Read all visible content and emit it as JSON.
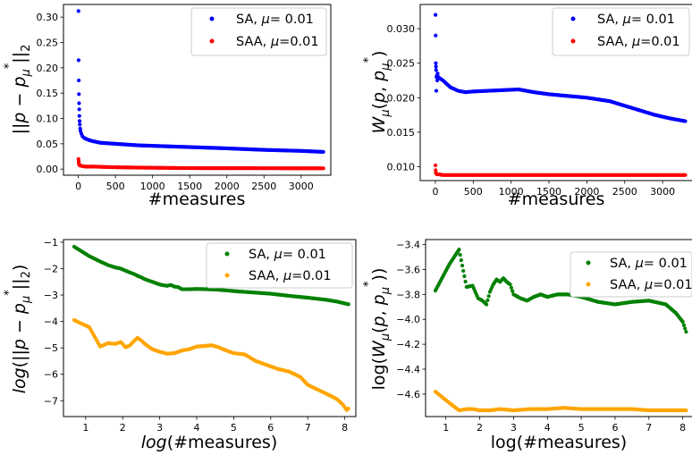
{
  "chart_data": [
    {
      "type": "scatter",
      "ylabel": "||p − p*μ||₂",
      "xlabel": "#measures",
      "xlim": [
        -200,
        3400
      ],
      "ylim": [
        -0.012,
        0.325
      ],
      "xticks": [
        0,
        500,
        1000,
        1500,
        2000,
        2500,
        3000
      ],
      "xtick_labels": [
        "0",
        "500",
        "1000",
        "1500",
        "2000",
        "2500",
        "3000"
      ],
      "yticks": [
        0.0,
        0.05,
        0.1,
        0.15,
        0.2,
        0.25,
        0.3
      ],
      "ytick_labels": [
        "0.00",
        "0.05",
        "0.10",
        "0.15",
        "0.20",
        "0.25",
        "0.30"
      ],
      "legend_position": "top-right",
      "series": [
        {
          "name": "SA, μ=  0.01",
          "color": "#0000ff",
          "points": [
            [
              2,
              0.312
            ],
            [
              4,
              0.215
            ],
            [
              6,
              0.175
            ],
            [
              8,
              0.148
            ],
            [
              10,
              0.13
            ],
            [
              12,
              0.118
            ],
            [
              14,
              0.105
            ],
            [
              17,
              0.095
            ],
            [
              20,
              0.088
            ],
            [
              25,
              0.08
            ],
            [
              30,
              0.075
            ],
            [
              40,
              0.07
            ],
            [
              55,
              0.065
            ],
            [
              75,
              0.062
            ],
            [
              100,
              0.06
            ],
            [
              150,
              0.057
            ],
            [
              200,
              0.055
            ],
            [
              300,
              0.052
            ],
            [
              500,
              0.05
            ],
            [
              800,
              0.047
            ],
            [
              1200,
              0.045
            ],
            [
              1600,
              0.043
            ],
            [
              2000,
              0.041
            ],
            [
              2500,
              0.038
            ],
            [
              3000,
              0.036
            ],
            [
              3300,
              0.034
            ]
          ]
        },
        {
          "name": "SAA, μ=0.01",
          "color": "#ff0000",
          "points": [
            [
              2,
              0.02
            ],
            [
              4,
              0.016
            ],
            [
              6,
              0.013
            ],
            [
              8,
              0.011
            ],
            [
              10,
              0.009
            ],
            [
              15,
              0.008
            ],
            [
              25,
              0.007
            ],
            [
              50,
              0.006
            ],
            [
              100,
              0.005
            ],
            [
              200,
              0.005
            ],
            [
              400,
              0.004
            ],
            [
              800,
              0.003
            ],
            [
              1500,
              0.002
            ],
            [
              2500,
              0.0018
            ],
            [
              3300,
              0.0016
            ]
          ]
        }
      ]
    },
    {
      "type": "scatter",
      "ylabel": "Wμ(p, p*μ)",
      "xlabel": "#measures",
      "xlim": [
        -200,
        3400
      ],
      "ylim": [
        0.008,
        0.0335
      ],
      "xticks": [
        0,
        500,
        1000,
        1500,
        2000,
        2500,
        3000
      ],
      "xtick_labels": [
        "0",
        "500",
        "1000",
        "1500",
        "2000",
        "2500",
        "3000"
      ],
      "yticks": [
        0.01,
        0.015,
        0.02,
        0.025,
        0.03
      ],
      "ytick_labels": [
        "0.010",
        "0.015",
        "0.020",
        "0.025",
        "0.030"
      ],
      "legend_position": "top-right",
      "series": [
        {
          "name": "SA, μ=  0.01",
          "color": "#0000ff",
          "points": [
            [
              2,
              0.032
            ],
            [
              4,
              0.029
            ],
            [
              6,
              0.025
            ],
            [
              8,
              0.0245
            ],
            [
              10,
              0.024
            ],
            [
              12,
              0.021
            ],
            [
              15,
              0.023
            ],
            [
              20,
              0.0232
            ],
            [
              25,
              0.0225
            ],
            [
              30,
              0.0235
            ],
            [
              40,
              0.023
            ],
            [
              60,
              0.0228
            ],
            [
              100,
              0.0225
            ],
            [
              150,
              0.022
            ],
            [
              200,
              0.0215
            ],
            [
              300,
              0.021
            ],
            [
              400,
              0.0208
            ],
            [
              500,
              0.0209
            ],
            [
              700,
              0.021
            ],
            [
              900,
              0.0211
            ],
            [
              1100,
              0.0212
            ],
            [
              1300,
              0.0208
            ],
            [
              1500,
              0.0205
            ],
            [
              1800,
              0.0202
            ],
            [
              2000,
              0.02
            ],
            [
              2300,
              0.0195
            ],
            [
              2600,
              0.0185
            ],
            [
              2900,
              0.0175
            ],
            [
              3100,
              0.017
            ],
            [
              3300,
              0.0166
            ]
          ]
        },
        {
          "name": "SAA, μ=0.01",
          "color": "#ff0000",
          "points": [
            [
              2,
              0.0102
            ],
            [
              4,
              0.0095
            ],
            [
              6,
              0.0092
            ],
            [
              10,
              0.009
            ],
            [
              20,
              0.0089
            ],
            [
              50,
              0.0089
            ],
            [
              100,
              0.0088
            ],
            [
              300,
              0.0088
            ],
            [
              800,
              0.0088
            ],
            [
              1500,
              0.0088
            ],
            [
              2500,
              0.0088
            ],
            [
              3300,
              0.0088
            ]
          ]
        }
      ]
    },
    {
      "type": "scatter",
      "ylabel": "log(||p − p*μ||₂)",
      "xlabel": "log(#measures)",
      "xlim": [
        0.4,
        8.3
      ],
      "ylim": [
        -7.6,
        -0.9
      ],
      "xticks": [
        1,
        2,
        3,
        4,
        5,
        6,
        7,
        8
      ],
      "xtick_labels": [
        "1",
        "2",
        "3",
        "4",
        "5",
        "6",
        "7",
        "8"
      ],
      "yticks": [
        -7,
        -6,
        -5,
        -4,
        -3,
        -2,
        -1
      ],
      "ytick_labels": [
        "−7",
        "−6",
        "−5",
        "−4",
        "−3",
        "−2",
        "−1"
      ],
      "legend_position": "top-right",
      "series": [
        {
          "name": "SA, μ=  0.01",
          "color": "#008000",
          "points": [
            [
              0.69,
              -1.17
            ],
            [
              1.1,
              -1.53
            ],
            [
              1.39,
              -1.73
            ],
            [
              1.61,
              -1.87
            ],
            [
              1.79,
              -1.95
            ],
            [
              1.95,
              -2.0
            ],
            [
              2.08,
              -2.08
            ],
            [
              2.2,
              -2.15
            ],
            [
              2.3,
              -2.2
            ],
            [
              2.4,
              -2.27
            ],
            [
              2.5,
              -2.33
            ],
            [
              2.6,
              -2.4
            ],
            [
              2.7,
              -2.45
            ],
            [
              2.8,
              -2.5
            ],
            [
              2.9,
              -2.55
            ],
            [
              3.0,
              -2.6
            ],
            [
              3.1,
              -2.63
            ],
            [
              3.2,
              -2.65
            ],
            [
              3.3,
              -2.62
            ],
            [
              3.4,
              -2.68
            ],
            [
              3.5,
              -2.7
            ],
            [
              3.6,
              -2.78
            ],
            [
              3.8,
              -2.78
            ],
            [
              4.0,
              -2.77
            ],
            [
              4.3,
              -2.78
            ],
            [
              4.6,
              -2.8
            ],
            [
              5.0,
              -2.85
            ],
            [
              5.5,
              -2.9
            ],
            [
              6.0,
              -2.95
            ],
            [
              6.5,
              -3.03
            ],
            [
              7.0,
              -3.1
            ],
            [
              7.5,
              -3.18
            ],
            [
              7.8,
              -3.25
            ],
            [
              8.1,
              -3.35
            ]
          ]
        },
        {
          "name": "SAA, μ=0.01",
          "color": "#ffa500",
          "points": [
            [
              0.69,
              -3.95
            ],
            [
              1.1,
              -4.22
            ],
            [
              1.39,
              -4.95
            ],
            [
              1.61,
              -4.82
            ],
            [
              1.79,
              -4.85
            ],
            [
              1.95,
              -4.78
            ],
            [
              2.08,
              -4.98
            ],
            [
              2.2,
              -4.9
            ],
            [
              2.3,
              -4.75
            ],
            [
              2.4,
              -4.62
            ],
            [
              2.5,
              -4.72
            ],
            [
              2.6,
              -4.85
            ],
            [
              2.7,
              -4.95
            ],
            [
              2.8,
              -5.05
            ],
            [
              3.0,
              -5.15
            ],
            [
              3.2,
              -5.22
            ],
            [
              3.4,
              -5.2
            ],
            [
              3.6,
              -5.1
            ],
            [
              3.8,
              -5.05
            ],
            [
              4.0,
              -4.95
            ],
            [
              4.2,
              -4.93
            ],
            [
              4.4,
              -4.9
            ],
            [
              4.6,
              -4.98
            ],
            [
              4.8,
              -5.1
            ],
            [
              5.0,
              -5.2
            ],
            [
              5.3,
              -5.25
            ],
            [
              5.6,
              -5.5
            ],
            [
              5.9,
              -5.65
            ],
            [
              6.2,
              -5.8
            ],
            [
              6.5,
              -5.9
            ],
            [
              6.8,
              -6.1
            ],
            [
              7.0,
              -6.4
            ],
            [
              7.3,
              -6.6
            ],
            [
              7.6,
              -6.8
            ],
            [
              7.8,
              -6.95
            ],
            [
              7.95,
              -7.15
            ],
            [
              8.05,
              -7.35
            ],
            [
              8.1,
              -7.3
            ]
          ]
        }
      ]
    },
    {
      "type": "scatter",
      "ylabel": "log(Wμ(p, p*μ))",
      "xlabel": "log(#measures)",
      "xlim": [
        0.4,
        8.3
      ],
      "ylim": [
        -4.78,
        -3.36
      ],
      "xticks": [
        1,
        2,
        3,
        4,
        5,
        6,
        7,
        8
      ],
      "xtick_labels": [
        "1",
        "2",
        "3",
        "4",
        "5",
        "6",
        "7",
        "8"
      ],
      "yticks": [
        -4.6,
        -4.4,
        -4.2,
        -4.0,
        -3.8,
        -3.6,
        -3.4
      ],
      "ytick_labels": [
        "−4.6",
        "−4.4",
        "−4.2",
        "−4.0",
        "−3.8",
        "−3.6",
        "−3.4"
      ],
      "legend_position": "top-right",
      "series": [
        {
          "name": "SA, μ=  0.01",
          "color": "#008000",
          "points": [
            [
              0.69,
              -3.77
            ],
            [
              1.1,
              -3.56
            ],
            [
              1.39,
              -3.44
            ],
            [
              1.61,
              -3.74
            ],
            [
              1.79,
              -3.73
            ],
            [
              1.95,
              -3.83
            ],
            [
              2.08,
              -3.85
            ],
            [
              2.2,
              -3.88
            ],
            [
              2.3,
              -3.78
            ],
            [
              2.4,
              -3.72
            ],
            [
              2.5,
              -3.68
            ],
            [
              2.6,
              -3.7
            ],
            [
              2.7,
              -3.67
            ],
            [
              2.8,
              -3.7
            ],
            [
              2.9,
              -3.72
            ],
            [
              3.0,
              -3.8
            ],
            [
              3.2,
              -3.83
            ],
            [
              3.4,
              -3.85
            ],
            [
              3.6,
              -3.82
            ],
            [
              3.8,
              -3.8
            ],
            [
              4.0,
              -3.82
            ],
            [
              4.3,
              -3.8
            ],
            [
              4.6,
              -3.8
            ],
            [
              5.0,
              -3.82
            ],
            [
              5.5,
              -3.86
            ],
            [
              6.0,
              -3.88
            ],
            [
              6.5,
              -3.86
            ],
            [
              7.0,
              -3.85
            ],
            [
              7.5,
              -3.88
            ],
            [
              7.8,
              -3.95
            ],
            [
              8.0,
              -4.02
            ],
            [
              8.1,
              -4.1
            ]
          ]
        },
        {
          "name": "SAA, μ=0.01",
          "color": "#ffa500",
          "points": [
            [
              0.69,
              -4.58
            ],
            [
              1.1,
              -4.67
            ],
            [
              1.39,
              -4.73
            ],
            [
              1.61,
              -4.72
            ],
            [
              1.8,
              -4.72
            ],
            [
              2.0,
              -4.73
            ],
            [
              2.3,
              -4.73
            ],
            [
              2.6,
              -4.72
            ],
            [
              3.0,
              -4.73
            ],
            [
              3.5,
              -4.72
            ],
            [
              4.0,
              -4.72
            ],
            [
              4.5,
              -4.71
            ],
            [
              5.0,
              -4.72
            ],
            [
              5.5,
              -4.72
            ],
            [
              6.0,
              -4.72
            ],
            [
              6.5,
              -4.72
            ],
            [
              7.0,
              -4.73
            ],
            [
              7.5,
              -4.73
            ],
            [
              8.1,
              -4.73
            ]
          ]
        }
      ]
    }
  ]
}
